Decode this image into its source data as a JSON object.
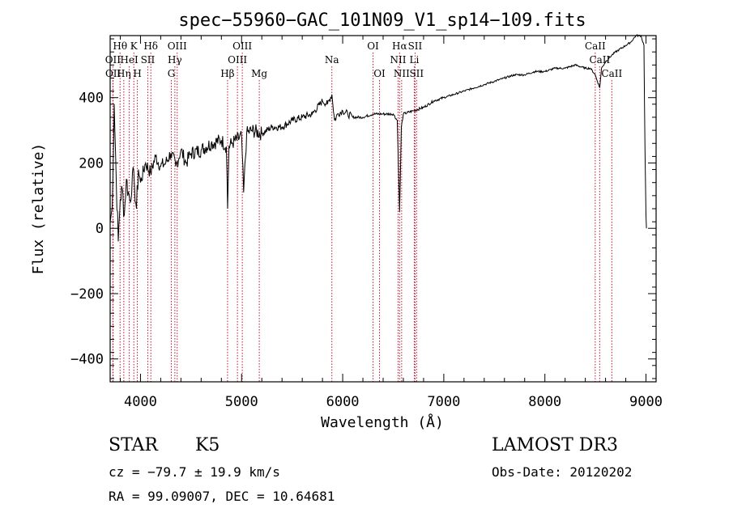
{
  "chart_data": {
    "type": "line",
    "title": "spec−55960−GAC_101N09_V1_sp14−109.fits",
    "xlabel": "Wavelength (Å)",
    "ylabel": "Flux (relative)",
    "xlim": [
      3700,
      9100
    ],
    "ylim": [
      -470,
      590
    ],
    "xticks": [
      4000,
      5000,
      6000,
      7000,
      8000,
      9000
    ],
    "yticks": [
      -400,
      -200,
      0,
      200,
      400
    ],
    "ytick_labels": [
      "−400",
      "−200",
      "0",
      "200",
      "400"
    ],
    "series": [
      {
        "name": "spectrum",
        "x": [
          3700,
          3720,
          3740,
          3760,
          3780,
          3800,
          3820,
          3840,
          3860,
          3880,
          3900,
          3920,
          3940,
          3960,
          3980,
          4000,
          4050,
          4100,
          4150,
          4200,
          4250,
          4300,
          4350,
          4400,
          4450,
          4500,
          4600,
          4700,
          4800,
          4850,
          4862,
          4875,
          4900,
          5000,
          5020,
          5050,
          5100,
          5200,
          5300,
          5400,
          5500,
          5600,
          5700,
          5800,
          5850,
          5893,
          5920,
          5950,
          6000,
          6050,
          6100,
          6200,
          6300,
          6400,
          6500,
          6540,
          6563,
          6580,
          6600,
          6700,
          6800,
          6900,
          7000,
          7100,
          7200,
          7300,
          7400,
          7500,
          7600,
          7700,
          7800,
          7900,
          8000,
          8100,
          8200,
          8300,
          8400,
          8450,
          8498,
          8520,
          8542,
          8560,
          8600,
          8662,
          8700,
          8800,
          8850,
          8900,
          8950,
          8980,
          8990,
          9000,
          9005
        ],
        "y": [
          20,
          60,
          380,
          150,
          -40,
          90,
          120,
          40,
          150,
          110,
          80,
          170,
          130,
          60,
          180,
          140,
          200,
          170,
          220,
          190,
          200,
          230,
          190,
          240,
          200,
          230,
          240,
          260,
          270,
          250,
          60,
          250,
          260,
          280,
          110,
          290,
          300,
          290,
          310,
          310,
          330,
          340,
          350,
          390,
          380,
          410,
          330,
          350,
          360,
          350,
          340,
          340,
          350,
          350,
          350,
          330,
          50,
          310,
          350,
          360,
          370,
          390,
          400,
          410,
          420,
          430,
          440,
          450,
          460,
          470,
          470,
          480,
          480,
          490,
          490,
          500,
          490,
          490,
          470,
          450,
          430,
          490,
          510,
          530,
          540,
          560,
          570,
          590,
          590,
          560,
          240,
          40,
          0
        ]
      }
    ],
    "spectral_lines": [
      {
        "name": "Hθ",
        "wave": 3798,
        "row": 1
      },
      {
        "name": "K",
        "wave": 3934,
        "row": 1
      },
      {
        "name": "Hδ",
        "wave": 4102,
        "row": 1
      },
      {
        "name": "OIII",
        "wave": 4363,
        "row": 1
      },
      {
        "name": "OIII",
        "wave": 5007,
        "row": 1
      },
      {
        "name": "OI",
        "wave": 6300,
        "row": 1
      },
      {
        "name": "Hα",
        "wave": 6563,
        "row": 1
      },
      {
        "name": "SII",
        "wave": 6716,
        "row": 1
      },
      {
        "name": "CaII",
        "wave": 8498,
        "row": 1
      },
      {
        "name": "OII",
        "wave": 3727,
        "row": 2
      },
      {
        "name": "HeI",
        "wave": 3889,
        "row": 2
      },
      {
        "name": "SII",
        "wave": 4072,
        "row": 2
      },
      {
        "name": "Hγ",
        "wave": 4340,
        "row": 2
      },
      {
        "name": "OIII",
        "wave": 4959,
        "row": 2
      },
      {
        "name": "Na",
        "wave": 5893,
        "row": 2
      },
      {
        "name": "NII",
        "wave": 6548,
        "row": 2
      },
      {
        "name": "Li",
        "wave": 6708,
        "row": 2
      },
      {
        "name": "CaII",
        "wave": 8542,
        "row": 2
      },
      {
        "name": "OII",
        "wave": 3729,
        "row": 3
      },
      {
        "name": "Hη",
        "wave": 3835,
        "row": 3
      },
      {
        "name": "H",
        "wave": 3969,
        "row": 3
      },
      {
        "name": "G",
        "wave": 4305,
        "row": 3
      },
      {
        "name": "Hβ",
        "wave": 4861,
        "row": 3
      },
      {
        "name": "Mg",
        "wave": 5175,
        "row": 3
      },
      {
        "name": "OI",
        "wave": 6364,
        "row": 3
      },
      {
        "name": "NII",
        "wave": 6583,
        "row": 3
      },
      {
        "name": "SII",
        "wave": 6731,
        "row": 3
      },
      {
        "name": "CaII",
        "wave": 8662,
        "row": 3
      }
    ]
  },
  "info": {
    "object_type": "STAR",
    "subclass": "K5",
    "survey": "LAMOST DR3",
    "redshift_line": "cz = −79.7 ± 19.9 km/s",
    "obs_date": "Obs-Date: 20120202",
    "coords": "RA =  99.09007, DEC =  10.64681"
  },
  "colors": {
    "spectrum": "#000000",
    "line_markers": "#c8102e",
    "axes": "#000000",
    "background": "#ffffff"
  }
}
